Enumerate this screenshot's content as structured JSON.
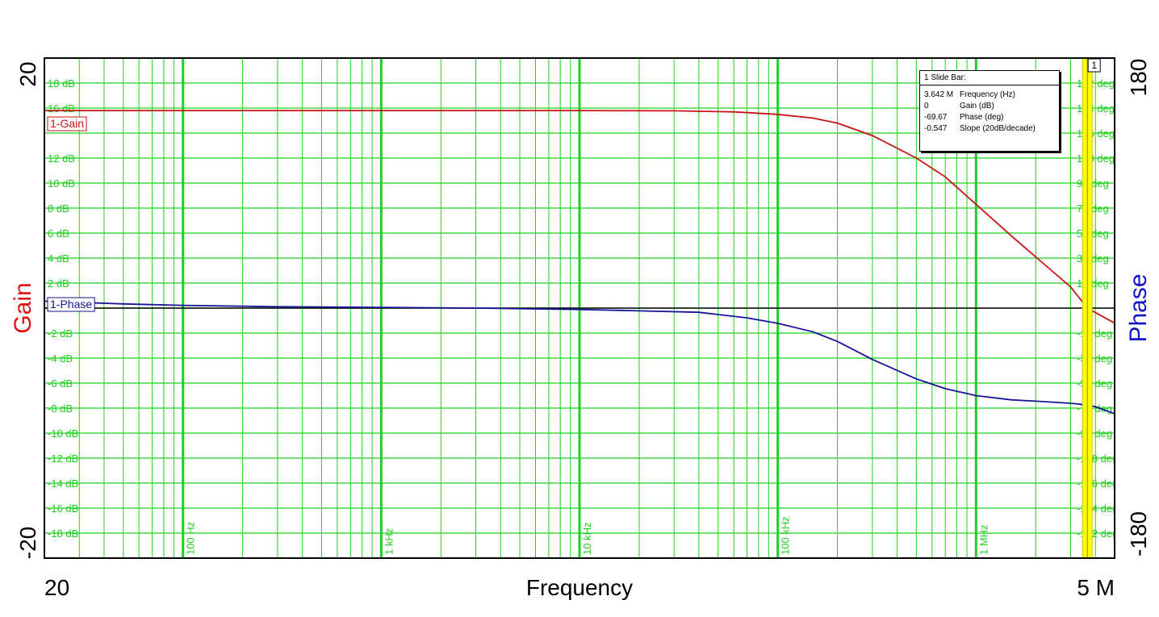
{
  "chart_data": {
    "type": "line",
    "xlabel": "Frequency",
    "xscale": "log",
    "xlim": [
      20,
      5000000
    ],
    "x_range_labels": [
      "20",
      "5 M"
    ],
    "x_decade_labels": [
      {
        "x": 100,
        "label": "100 Hz"
      },
      {
        "x": 1000,
        "label": "1 kHz"
      },
      {
        "x": 10000,
        "label": "10 kHz"
      },
      {
        "x": 100000,
        "label": "100 kHz"
      },
      {
        "x": 1000000,
        "label": "1 MHz"
      }
    ],
    "gain_axis": {
      "label": "Gain",
      "color": "#e01010",
      "ylim": [
        -20,
        20
      ],
      "range_labels": [
        "20",
        "-20"
      ],
      "ticks": [
        {
          "v": 18,
          "label": "18 dB"
        },
        {
          "v": 16,
          "label": "16 dB"
        },
        {
          "v": 12,
          "label": "12 dB"
        },
        {
          "v": 10,
          "label": "10 dB"
        },
        {
          "v": 8,
          "label": "8 dB"
        },
        {
          "v": 6,
          "label": "6 dB"
        },
        {
          "v": 4,
          "label": "4 dB"
        },
        {
          "v": 2,
          "label": "2 dB"
        },
        {
          "v": -2,
          "label": "-2 dB"
        },
        {
          "v": -4,
          "label": "-4 dB"
        },
        {
          "v": -6,
          "label": "-6 dB"
        },
        {
          "v": -8,
          "label": "-8 dB"
        },
        {
          "v": -10,
          "label": "-10 dB"
        },
        {
          "v": -12,
          "label": "-12 dB"
        },
        {
          "v": -14,
          "label": "-14 dB"
        },
        {
          "v": -16,
          "label": "-16 dB"
        },
        {
          "v": -18,
          "label": "-18 dB"
        }
      ]
    },
    "phase_axis": {
      "label": "Phase",
      "color": "#1010c8",
      "ylim": [
        -180,
        180
      ],
      "range_labels": [
        "180",
        "-180"
      ],
      "ticks": [
        {
          "v": 162,
          "label": "162 deg"
        },
        {
          "v": 144,
          "label": "144 deg"
        },
        {
          "v": 126,
          "label": "126 deg"
        },
        {
          "v": 108,
          "label": "108 deg"
        },
        {
          "v": 90,
          "label": "90 deg"
        },
        {
          "v": 72,
          "label": "72 deg"
        },
        {
          "v": 54,
          "label": "54 deg"
        },
        {
          "v": 36,
          "label": "36 deg"
        },
        {
          "v": 18,
          "label": "18 deg"
        },
        {
          "v": -18,
          "label": "-18 deg"
        },
        {
          "v": -36,
          "label": "-36 deg"
        },
        {
          "v": -54,
          "label": "-54 deg"
        },
        {
          "v": -72,
          "label": "-72 deg"
        },
        {
          "v": -90,
          "label": "-90 deg"
        },
        {
          "v": -108,
          "label": "-108 deg"
        },
        {
          "v": -126,
          "label": "-126 deg"
        },
        {
          "v": -144,
          "label": "-144 deg"
        },
        {
          "v": -162,
          "label": "-162 deg"
        }
      ]
    },
    "series": [
      {
        "name": "1-Gain",
        "axis": "gain",
        "color": "#c81414",
        "x": [
          20,
          100,
          1000,
          10000,
          30000,
          60000,
          100000,
          150000,
          200000,
          300000,
          500000,
          700000,
          1000000,
          1500000,
          2000000,
          3000000,
          3642000,
          5000000
        ],
        "y": [
          15.8,
          15.8,
          15.8,
          15.8,
          15.78,
          15.7,
          15.5,
          15.2,
          14.8,
          13.8,
          12.0,
          10.5,
          8.3,
          5.8,
          4.1,
          1.7,
          0.0,
          -1.2
        ]
      },
      {
        "name": "1-Phase",
        "axis": "phase",
        "color": "#141496",
        "x": [
          20,
          50,
          100,
          300,
          1000,
          3000,
          10000,
          20000,
          40000,
          70000,
          100000,
          150000,
          200000,
          300000,
          500000,
          700000,
          1000000,
          1500000,
          2000000,
          3000000,
          3642000,
          4000000,
          5000000
        ],
        "y": [
          5,
          3,
          2,
          1,
          0.5,
          0,
          -1,
          -2,
          -3,
          -7,
          -11,
          -17,
          -24,
          -37,
          -51,
          -58,
          -63,
          -66,
          -67,
          -68.5,
          -69.67,
          -71,
          -76
        ]
      }
    ],
    "legend": [
      "1-Gain",
      "1-Phase"
    ],
    "cursor": {
      "id": "1",
      "x": 3642000,
      "title": "1  Slide Bar:",
      "rows": [
        {
          "value": "3.642 M",
          "label": "Frequency (Hz)"
        },
        {
          "value": "0",
          "label": "Gain (dB)"
        },
        {
          "value": "-69.67",
          "label": "Phase (deg)"
        },
        {
          "value": "-0.547",
          "label": "Slope (20dB/decade)"
        }
      ]
    },
    "grid": true
  },
  "colors": {
    "grid": "#1ed01e",
    "cursor": "#ffff00",
    "zero_line": "#000000"
  }
}
